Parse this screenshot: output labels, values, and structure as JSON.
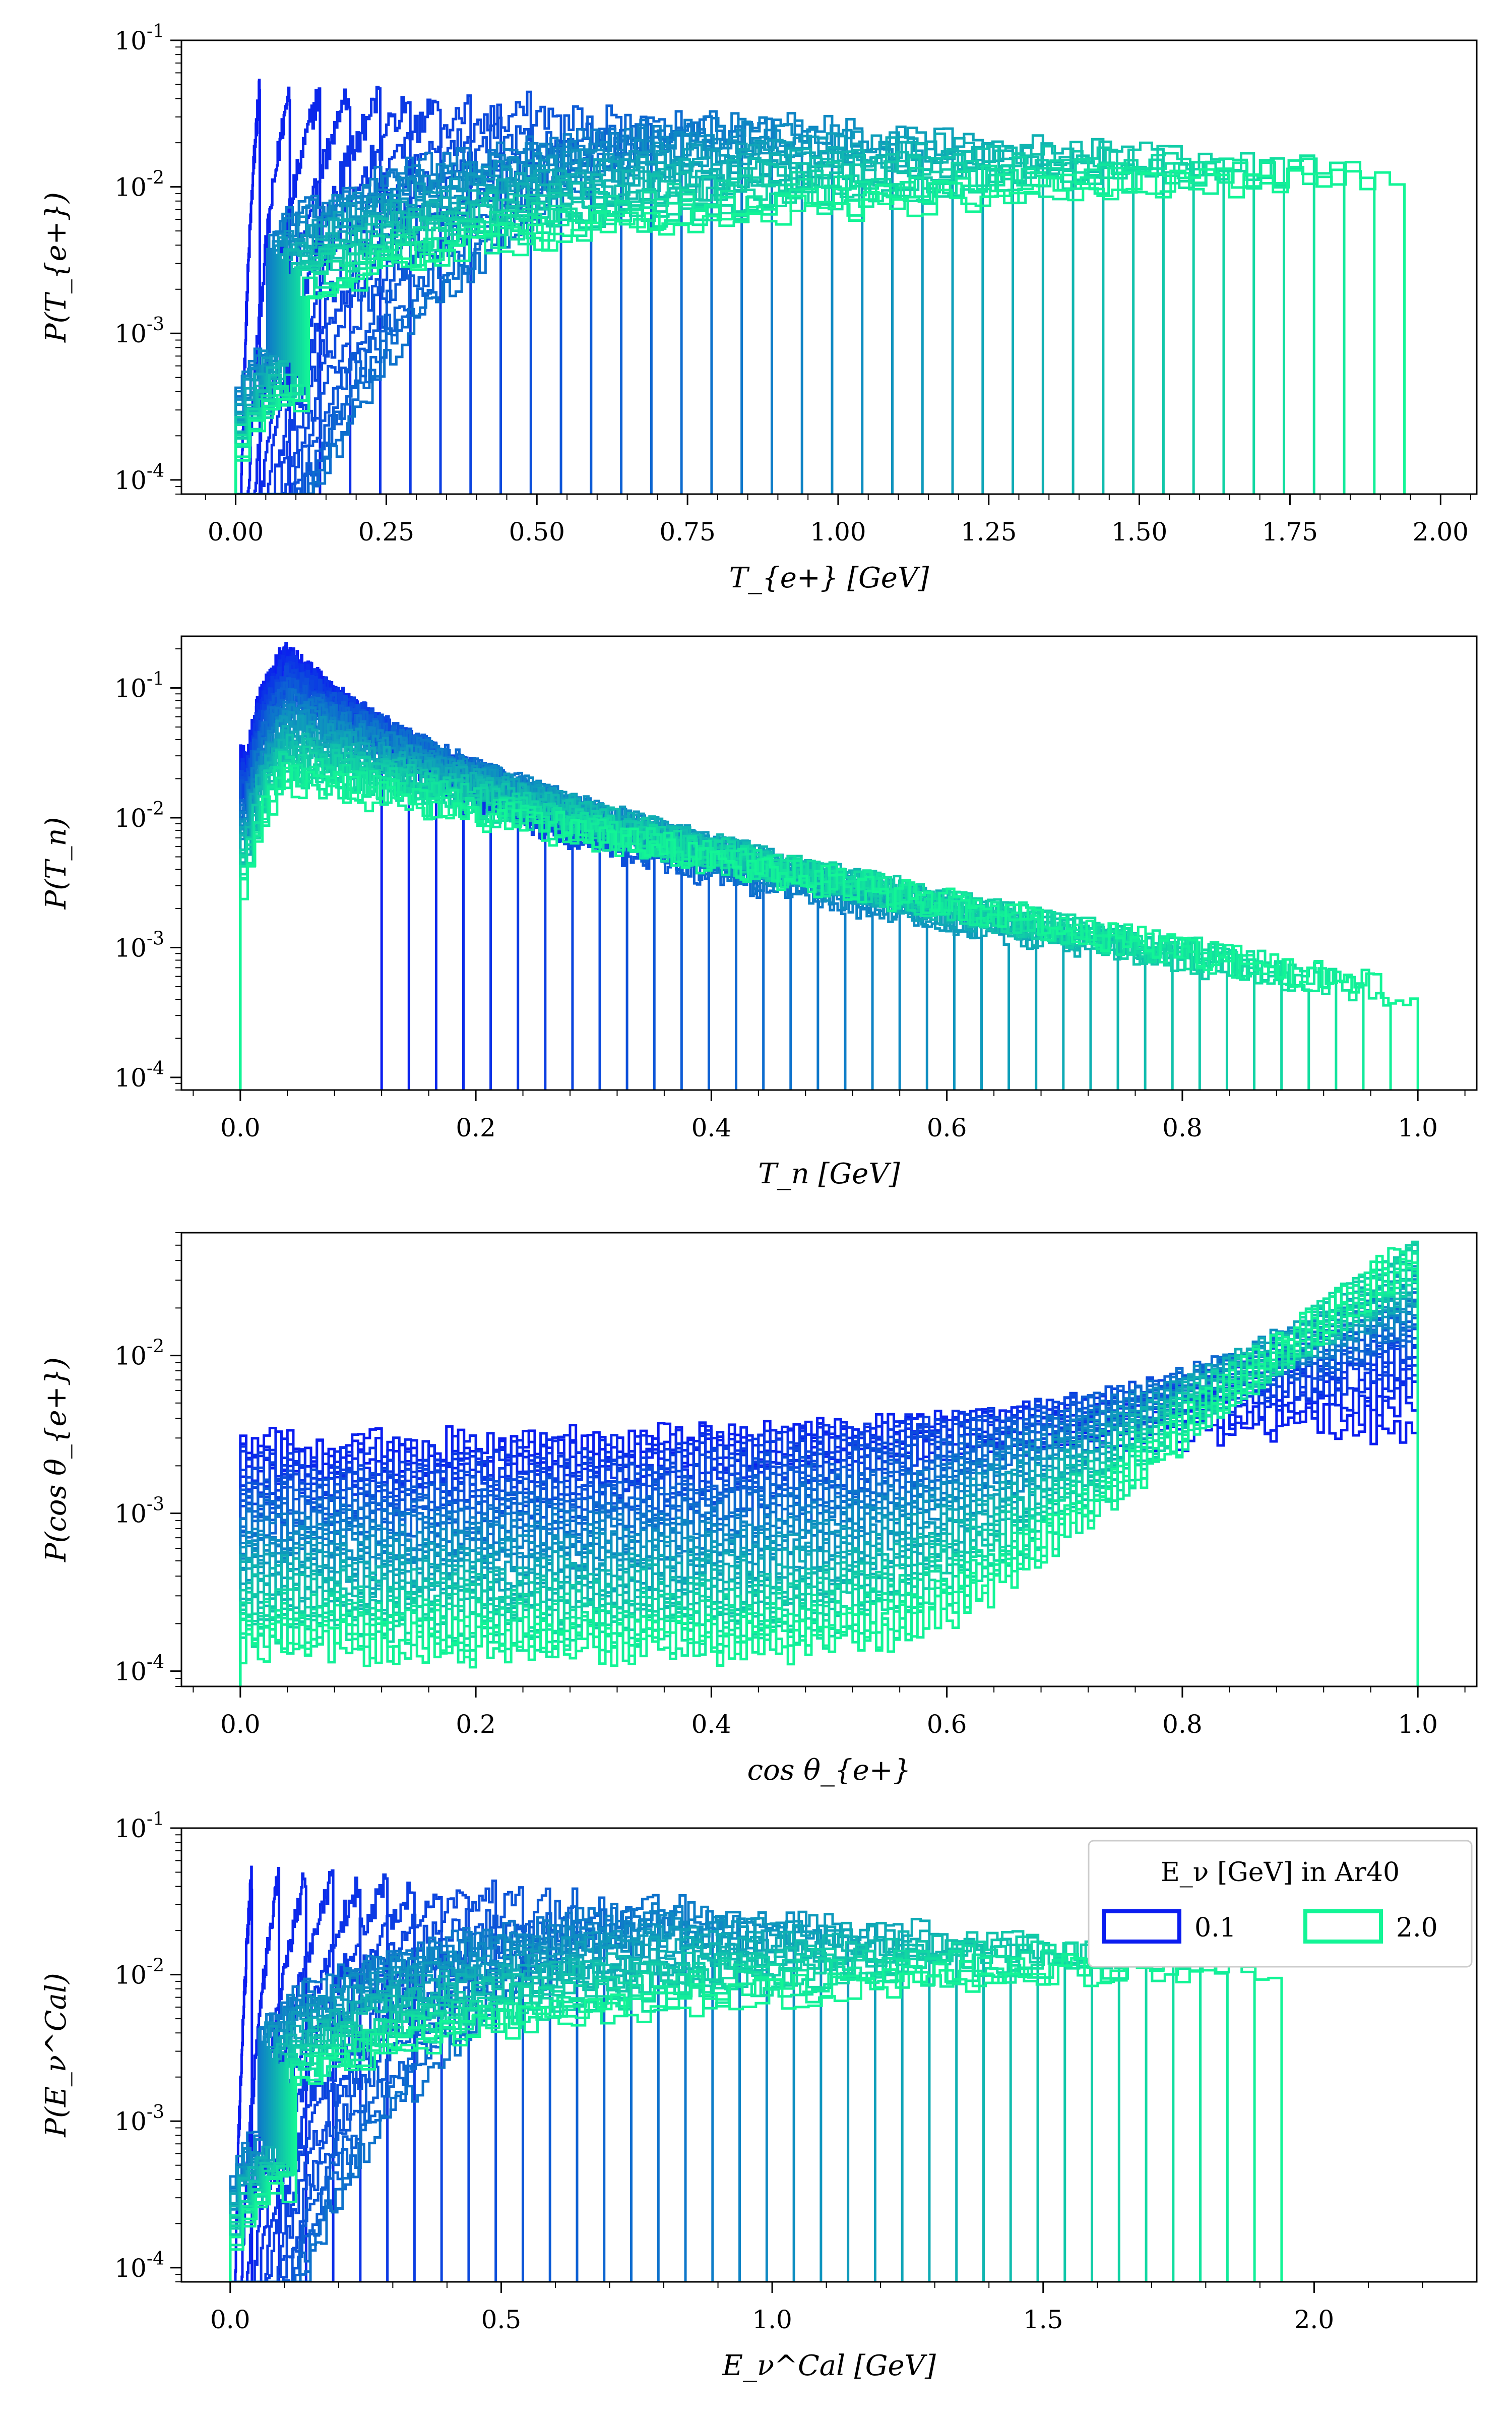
{
  "colors": {
    "low": "#0a1cf0",
    "high": "#12f596"
  },
  "chart_data": [
    {
      "type": "line",
      "subtype": "step-histogram",
      "scale": "log",
      "ylabel": "P(T_{e+})",
      "xlabel": "T_{e+} [GeV]",
      "xlim": [
        -0.09,
        2.06
      ],
      "ylim": [
        8e-05,
        0.1
      ],
      "xticks": [
        "0.00",
        "0.25",
        "0.50",
        "0.75",
        "1.00",
        "1.25",
        "1.50",
        "1.75",
        "2.00"
      ],
      "xtick_values": [
        0,
        0.25,
        0.5,
        0.75,
        1.0,
        1.25,
        1.5,
        1.75,
        2.0
      ],
      "yticks": [
        "10^-4",
        "10^-3",
        "10^-2"
      ],
      "series_energies_gev": [
        0.1,
        0.15,
        0.2,
        0.25,
        0.3,
        0.35,
        0.4,
        0.45,
        0.5,
        0.55,
        0.6,
        0.65,
        0.7,
        0.75,
        0.8,
        0.85,
        0.9,
        0.95,
        1.0,
        1.05,
        1.1,
        1.15,
        1.2,
        1.25,
        1.3,
        1.35,
        1.4,
        1.45,
        1.5,
        1.55,
        1.6,
        1.65,
        1.7,
        1.75,
        1.8,
        1.85,
        1.9,
        1.95,
        2.0
      ],
      "peak_y_low": 0.05,
      "peak_y_high": 0.012
    },
    {
      "type": "line",
      "subtype": "step-histogram",
      "scale": "log",
      "ylabel": "P(T_n)",
      "xlabel": "T_n [GeV]",
      "xlim": [
        -0.05,
        1.05
      ],
      "ylim": [
        8e-05,
        0.25
      ],
      "xticks": [
        "0.0",
        "0.2",
        "0.4",
        "0.6",
        "0.8",
        "1.0"
      ],
      "xtick_values": [
        0,
        0.2,
        0.4,
        0.6,
        0.8,
        1.0
      ],
      "yticks": [
        "10^-4",
        "10^-3",
        "10^-2",
        "10^-1"
      ],
      "peak_x": 0.04,
      "peak_y_max": 0.18,
      "tail_end_x": 1.0
    },
    {
      "type": "line",
      "subtype": "step-histogram",
      "scale": "log",
      "ylabel": "P(cos θ_{e+})",
      "xlabel": "cos θ_{e+}",
      "xlim": [
        -0.05,
        1.05
      ],
      "ylim": [
        8e-05,
        0.06
      ],
      "xticks": [
        "0.0",
        "0.2",
        "0.4",
        "0.6",
        "0.8",
        "1.0"
      ],
      "xtick_values": [
        0,
        0.2,
        0.4,
        0.6,
        0.8,
        1.0
      ],
      "yticks": [
        "10^-4",
        "10^-3",
        "10^-2"
      ],
      "flat_level_low": 0.0025,
      "forward_peak_high": 0.045
    },
    {
      "type": "line",
      "subtype": "step-histogram",
      "scale": "log",
      "ylabel": "P(E_ν^Cal)",
      "xlabel": "E_ν^Cal [GeV]",
      "xlim": [
        -0.09,
        2.3
      ],
      "ylim": [
        8e-05,
        0.1
      ],
      "xticks": [
        "0.0",
        "0.5",
        "1.0",
        "1.5",
        "2.0"
      ],
      "xtick_values": [
        0,
        0.5,
        1.0,
        1.5,
        2.0
      ],
      "yticks": [
        "10^-4",
        "10^-3",
        "10^-2"
      ],
      "peak_y_low": 0.05,
      "peak_y_high": 0.012,
      "legend": {
        "title": "E_ν [GeV] in Ar40",
        "entries": [
          "0.1",
          "2.0"
        ],
        "position": "top-right"
      }
    }
  ]
}
